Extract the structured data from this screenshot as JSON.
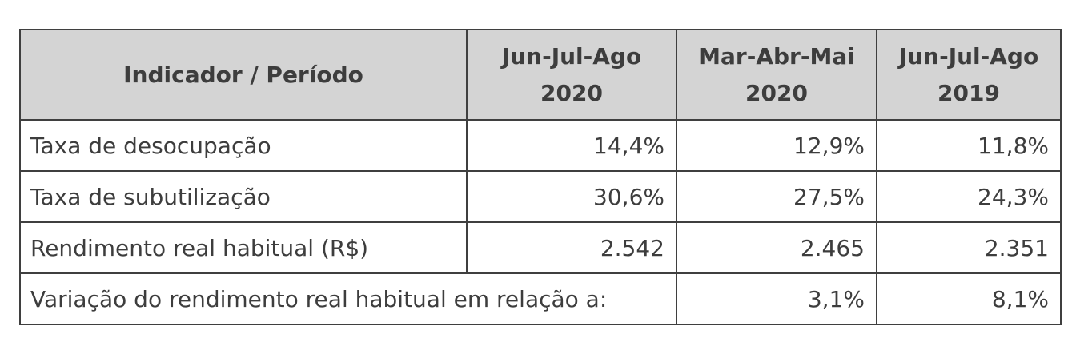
{
  "table": {
    "headers": [
      {
        "line1": "Indicador / Período",
        "line2": ""
      },
      {
        "line1": "Jun-Jul-Ago",
        "line2": "2020"
      },
      {
        "line1": "Mar-Abr-Mai",
        "line2": "2020"
      },
      {
        "line1": "Jun-Jul-Ago",
        "line2": "2019"
      }
    ],
    "rows": [
      {
        "label": "Taxa de desocupação",
        "values": [
          "14,4%",
          "12,9%",
          "11,8%"
        ]
      },
      {
        "label": "Taxa de subutilização",
        "values": [
          "30,6%",
          "27,5%",
          "24,3%"
        ]
      },
      {
        "label": "Rendimento real habitual (R$)",
        "values": [
          "2.542",
          "2.465",
          "2.351"
        ]
      }
    ],
    "variation_row": {
      "label": "Variação do rendimento real habitual em relação a:",
      "values": [
        "3,1%",
        "8,1%"
      ]
    }
  }
}
